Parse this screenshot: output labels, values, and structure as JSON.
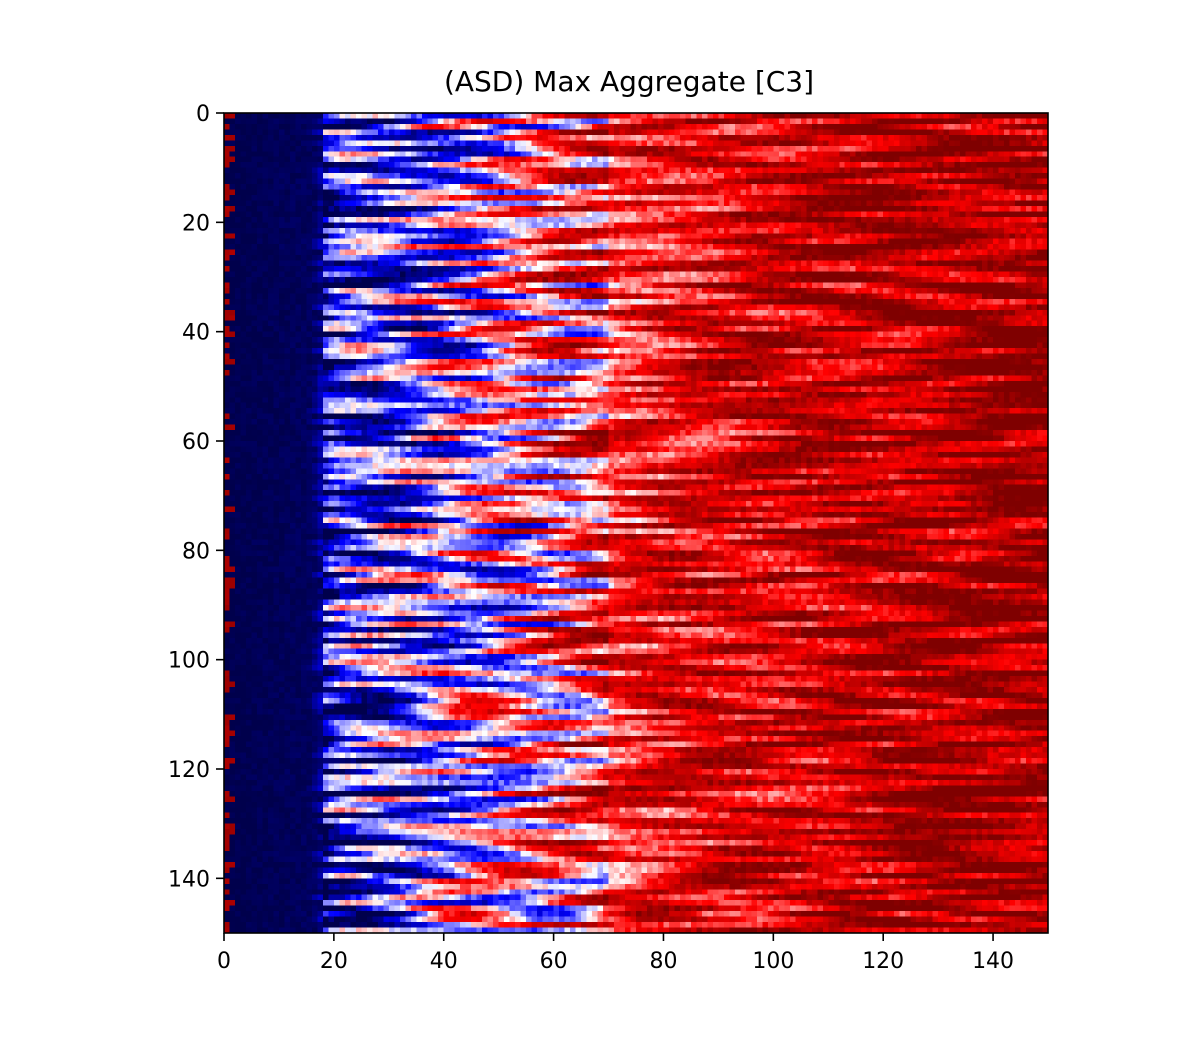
{
  "chart_data": {
    "type": "heatmap",
    "title": "(ASD) Max Aggregate [C3]",
    "xlabel": "",
    "ylabel": "",
    "xlim": [
      0,
      150
    ],
    "ylim": [
      150,
      0
    ],
    "rows": 150,
    "cols": 150,
    "x_ticks": [
      0,
      20,
      40,
      60,
      80,
      100,
      120,
      140
    ],
    "y_ticks": [
      0,
      20,
      40,
      60,
      80,
      100,
      120,
      140
    ],
    "x_tick_labels": [
      "0",
      "20",
      "40",
      "60",
      "80",
      "100",
      "120",
      "140"
    ],
    "y_tick_labels": [
      "0",
      "20",
      "40",
      "60",
      "80",
      "100",
      "120",
      "140"
    ],
    "colormap": "seismic",
    "colormap_stops": [
      "#00004c",
      "#0000ff",
      "#ffffff",
      "#ff0000",
      "#7f0000"
    ],
    "value_range": [
      -1,
      1
    ],
    "column_profile": [
      {
        "col": 0,
        "value": -1.0
      },
      {
        "col": 16,
        "value": -0.95
      },
      {
        "col": 20,
        "value": -0.45
      },
      {
        "col": 30,
        "value": -0.35
      },
      {
        "col": 45,
        "value": -0.1
      },
      {
        "col": 60,
        "value": 0.25
      },
      {
        "col": 75,
        "value": 0.5
      },
      {
        "col": 95,
        "value": 0.68
      },
      {
        "col": 120,
        "value": 0.78
      },
      {
        "col": 150,
        "value": 0.85
      }
    ],
    "grid": false,
    "legend": "none"
  }
}
